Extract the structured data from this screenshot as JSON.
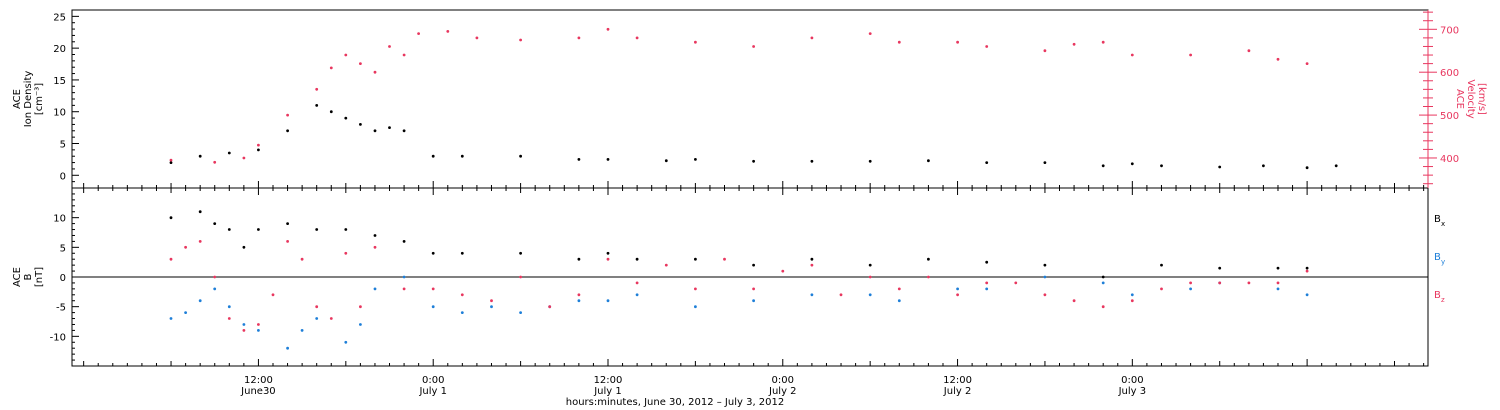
{
  "chart_data": [
    {
      "type": "scatter",
      "panel": "top",
      "ylabel_left_lines": [
        "ACE",
        "Ion Density",
        "[cm⁻³]"
      ],
      "ylabel_right_lines": [
        "ACE",
        "Velocity",
        "[km/s]"
      ],
      "ylim": [
        -2,
        26
      ],
      "y2lim": [
        330,
        745
      ],
      "yticks": [
        0,
        5,
        10,
        15,
        20,
        25
      ],
      "y2ticks": [
        400,
        500,
        600,
        700
      ],
      "series": [
        {
          "color": "#000000",
          "axis": "left",
          "points": [
            [
              0,
              2
            ],
            [
              2,
              3
            ],
            [
              4,
              3.5
            ],
            [
              6,
              4
            ],
            [
              8,
              7
            ],
            [
              10,
              11
            ],
            [
              11,
              10
            ],
            [
              12,
              9
            ],
            [
              13,
              8
            ],
            [
              14,
              7
            ],
            [
              15,
              7.5
            ],
            [
              16,
              7
            ],
            [
              18,
              3
            ],
            [
              20,
              3
            ],
            [
              24,
              3
            ],
            [
              28,
              2.5
            ],
            [
              30,
              2.5
            ],
            [
              34,
              2.3
            ],
            [
              36,
              2.5
            ],
            [
              40,
              2.2
            ],
            [
              44,
              2.2
            ],
            [
              48,
              2.2
            ],
            [
              52,
              2.3
            ],
            [
              56,
              2
            ],
            [
              60,
              2
            ],
            [
              64,
              1.5
            ],
            [
              66,
              1.8
            ],
            [
              68,
              1.5
            ],
            [
              72,
              1.3
            ],
            [
              75,
              1.5
            ],
            [
              78,
              1.2
            ],
            [
              80,
              1.5
            ]
          ]
        },
        {
          "color": "#e8375f",
          "axis": "right",
          "points": [
            [
              0,
              395
            ],
            [
              3,
              390
            ],
            [
              5,
              400
            ],
            [
              6,
              430
            ],
            [
              8,
              500
            ],
            [
              10,
              560
            ],
            [
              11,
              610
            ],
            [
              12,
              640
            ],
            [
              13,
              620
            ],
            [
              14,
              600
            ],
            [
              15,
              660
            ],
            [
              16,
              640
            ],
            [
              17,
              690
            ],
            [
              19,
              695
            ],
            [
              21,
              680
            ],
            [
              24,
              675
            ],
            [
              28,
              680
            ],
            [
              30,
              700
            ],
            [
              32,
              680
            ],
            [
              36,
              670
            ],
            [
              40,
              660
            ],
            [
              44,
              680
            ],
            [
              48,
              690
            ],
            [
              50,
              670
            ],
            [
              54,
              670
            ],
            [
              56,
              660
            ],
            [
              60,
              650
            ],
            [
              62,
              665
            ],
            [
              64,
              670
            ],
            [
              66,
              640
            ],
            [
              70,
              640
            ],
            [
              74,
              650
            ],
            [
              76,
              630
            ],
            [
              78,
              620
            ]
          ]
        }
      ]
    },
    {
      "type": "scatter",
      "panel": "bottom",
      "ylabel_left_lines": [
        "ACE",
        "B",
        "[nT]"
      ],
      "ylim": [
        -15,
        15
      ],
      "yticks": [
        -10,
        -5,
        0,
        5,
        10
      ],
      "zero_line": true,
      "legend_position": "right",
      "series": [
        {
          "name_base": "B",
          "name_sub": "x",
          "color": "#000000",
          "points": [
            [
              0,
              10
            ],
            [
              2,
              11
            ],
            [
              3,
              9
            ],
            [
              4,
              8
            ],
            [
              5,
              5
            ],
            [
              6,
              8
            ],
            [
              8,
              9
            ],
            [
              10,
              8
            ],
            [
              12,
              8
            ],
            [
              14,
              7
            ],
            [
              16,
              6
            ],
            [
              18,
              4
            ],
            [
              20,
              4
            ],
            [
              24,
              4
            ],
            [
              28,
              3
            ],
            [
              30,
              4
            ],
            [
              32,
              3
            ],
            [
              36,
              3
            ],
            [
              40,
              2
            ],
            [
              44,
              3
            ],
            [
              48,
              2
            ],
            [
              52,
              3
            ],
            [
              56,
              2.5
            ],
            [
              60,
              2
            ],
            [
              64,
              0
            ],
            [
              68,
              2
            ],
            [
              72,
              1.5
            ],
            [
              76,
              1.5
            ],
            [
              78,
              1.5
            ]
          ]
        },
        {
          "name_base": "B",
          "name_sub": "y",
          "color": "#1e7fd8",
          "points": [
            [
              0,
              -7
            ],
            [
              1,
              -6
            ],
            [
              2,
              -4
            ],
            [
              3,
              -2
            ],
            [
              4,
              -5
            ],
            [
              5,
              -8
            ],
            [
              6,
              -9
            ],
            [
              8,
              -12
            ],
            [
              9,
              -9
            ],
            [
              10,
              -7
            ],
            [
              12,
              -11
            ],
            [
              13,
              -8
            ],
            [
              14,
              -2
            ],
            [
              16,
              0
            ],
            [
              18,
              -5
            ],
            [
              20,
              -6
            ],
            [
              22,
              -5
            ],
            [
              24,
              -6
            ],
            [
              26,
              -5
            ],
            [
              28,
              -4
            ],
            [
              30,
              -4
            ],
            [
              32,
              -3
            ],
            [
              36,
              -5
            ],
            [
              40,
              -4
            ],
            [
              44,
              -3
            ],
            [
              48,
              -3
            ],
            [
              50,
              -4
            ],
            [
              54,
              -2
            ],
            [
              56,
              -2
            ],
            [
              60,
              0
            ],
            [
              64,
              -1
            ],
            [
              66,
              -3
            ],
            [
              70,
              -2
            ],
            [
              72,
              -1
            ],
            [
              76,
              -2
            ],
            [
              78,
              -3
            ]
          ]
        },
        {
          "name_base": "B",
          "name_sub": "z",
          "color": "#e8375f",
          "points": [
            [
              0,
              3
            ],
            [
              1,
              5
            ],
            [
              2,
              6
            ],
            [
              3,
              0
            ],
            [
              4,
              -7
            ],
            [
              5,
              -9
            ],
            [
              6,
              -8
            ],
            [
              7,
              -3
            ],
            [
              8,
              6
            ],
            [
              9,
              3
            ],
            [
              10,
              -5
            ],
            [
              11,
              -7
            ],
            [
              12,
              4
            ],
            [
              13,
              -5
            ],
            [
              14,
              5
            ],
            [
              16,
              -2
            ],
            [
              18,
              -2
            ],
            [
              20,
              -3
            ],
            [
              22,
              -4
            ],
            [
              24,
              0
            ],
            [
              26,
              -5
            ],
            [
              28,
              -3
            ],
            [
              30,
              3
            ],
            [
              32,
              -1
            ],
            [
              34,
              2
            ],
            [
              36,
              -2
            ],
            [
              38,
              3
            ],
            [
              40,
              -2
            ],
            [
              42,
              1
            ],
            [
              44,
              2
            ],
            [
              46,
              -3
            ],
            [
              48,
              0
            ],
            [
              50,
              -2
            ],
            [
              52,
              0
            ],
            [
              54,
              -3
            ],
            [
              56,
              -1
            ],
            [
              58,
              -1
            ],
            [
              60,
              -3
            ],
            [
              62,
              -4
            ],
            [
              64,
              -5
            ],
            [
              66,
              -4
            ],
            [
              68,
              -2
            ],
            [
              70,
              -1
            ],
            [
              72,
              -1
            ],
            [
              74,
              -1
            ],
            [
              76,
              -1
            ],
            [
              78,
              1
            ]
          ]
        }
      ]
    }
  ],
  "x_axis": {
    "xlim": [
      -6.8,
      86.3
    ],
    "ticks": [
      {
        "x": 6,
        "time": "12:00",
        "date": "June30"
      },
      {
        "x": 18,
        "time": "0:00",
        "date": "July 1"
      },
      {
        "x": 30,
        "time": "12:00",
        "date": "July 1"
      },
      {
        "x": 42,
        "time": "0:00",
        "date": "July 2"
      },
      {
        "x": 54,
        "time": "12:00",
        "date": "July 2"
      },
      {
        "x": 66,
        "time": "0:00",
        "date": "July 3"
      }
    ],
    "label": "hours:minutes, June 30, 2012 – July  3, 2012"
  }
}
